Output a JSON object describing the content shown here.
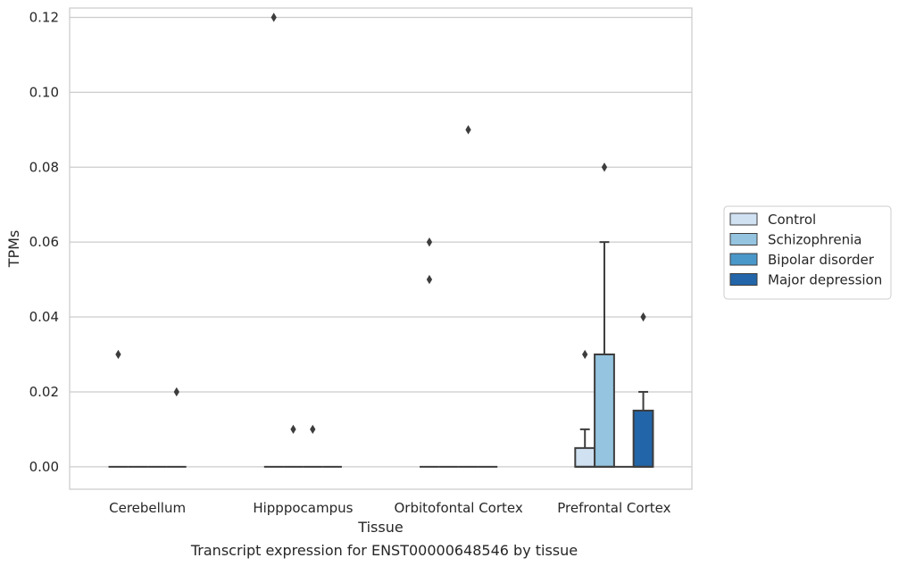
{
  "caption": "Transcript expression for ENST00000648546 by tissue",
  "chart_data": {
    "type": "box",
    "xlabel": "Tissue",
    "ylabel": "TPMs",
    "ylim": [
      -0.006,
      0.1225
    ],
    "yticks": [
      0.0,
      0.02,
      0.04,
      0.06,
      0.08,
      0.1,
      0.12
    ],
    "ytick_labels": [
      "0.00",
      "0.02",
      "0.04",
      "0.06",
      "0.08",
      "0.10",
      "0.12"
    ],
    "grid": true,
    "legend_position": "right",
    "categories": [
      "Cerebellum",
      "Hipppocampus",
      "Orbitofontal Cortex",
      "Prefrontal Cortex"
    ],
    "series": [
      {
        "name": "Control",
        "color": "#d0e1f2",
        "boxes": [
          {
            "category": "Cerebellum",
            "q1": 0,
            "median": 0,
            "q3": 0,
            "whisker_low": 0,
            "whisker_high": 0,
            "outliers": [
              0.03
            ]
          },
          {
            "category": "Hipppocampus",
            "q1": 0,
            "median": 0,
            "q3": 0,
            "whisker_low": 0,
            "whisker_high": 0,
            "outliers": [
              0.12
            ]
          },
          {
            "category": "Orbitofontal Cortex",
            "q1": 0,
            "median": 0,
            "q3": 0,
            "whisker_low": 0,
            "whisker_high": 0,
            "outliers": [
              0.06,
              0.05
            ]
          },
          {
            "category": "Prefrontal Cortex",
            "q1": 0,
            "median": 0,
            "q3": 0.005,
            "whisker_low": 0,
            "whisker_high": 0.01,
            "outliers": [
              0.03
            ]
          }
        ]
      },
      {
        "name": "Schizophrenia",
        "color": "#94c4df",
        "boxes": [
          {
            "category": "Cerebellum",
            "q1": 0,
            "median": 0,
            "q3": 0,
            "whisker_low": 0,
            "whisker_high": 0,
            "outliers": []
          },
          {
            "category": "Hipppocampus",
            "q1": 0,
            "median": 0,
            "q3": 0,
            "whisker_low": 0,
            "whisker_high": 0,
            "outliers": [
              0.01
            ]
          },
          {
            "category": "Orbitofontal Cortex",
            "q1": 0,
            "median": 0,
            "q3": 0,
            "whisker_low": 0,
            "whisker_high": 0,
            "outliers": []
          },
          {
            "category": "Prefrontal Cortex",
            "q1": 0,
            "median": 0,
            "q3": 0.03,
            "whisker_low": 0,
            "whisker_high": 0.06,
            "outliers": [
              0.08
            ]
          }
        ]
      },
      {
        "name": "Bipolar disorder",
        "color": "#4a98c9",
        "boxes": [
          {
            "category": "Cerebellum",
            "q1": 0,
            "median": 0,
            "q3": 0,
            "whisker_low": 0,
            "whisker_high": 0,
            "outliers": []
          },
          {
            "category": "Hipppocampus",
            "q1": 0,
            "median": 0,
            "q3": 0,
            "whisker_low": 0,
            "whisker_high": 0,
            "outliers": [
              0.01
            ]
          },
          {
            "category": "Orbitofontal Cortex",
            "q1": 0,
            "median": 0,
            "q3": 0,
            "whisker_low": 0,
            "whisker_high": 0,
            "outliers": [
              0.09
            ]
          },
          {
            "category": "Prefrontal Cortex",
            "q1": 0,
            "median": 0,
            "q3": 0,
            "whisker_low": 0,
            "whisker_high": 0,
            "outliers": []
          }
        ]
      },
      {
        "name": "Major depression",
        "color": "#2265a8",
        "boxes": [
          {
            "category": "Cerebellum",
            "q1": 0,
            "median": 0,
            "q3": 0,
            "whisker_low": 0,
            "whisker_high": 0,
            "outliers": [
              0.02
            ]
          },
          {
            "category": "Hipppocampus",
            "q1": 0,
            "median": 0,
            "q3": 0,
            "whisker_low": 0,
            "whisker_high": 0,
            "outliers": []
          },
          {
            "category": "Orbitofontal Cortex",
            "q1": 0,
            "median": 0,
            "q3": 0,
            "whisker_low": 0,
            "whisker_high": 0,
            "outliers": []
          },
          {
            "category": "Prefrontal Cortex",
            "q1": 0,
            "median": 0,
            "q3": 0.015,
            "whisker_low": 0,
            "whisker_high": 0.02,
            "outliers": [
              0.04
            ]
          }
        ]
      }
    ]
  }
}
